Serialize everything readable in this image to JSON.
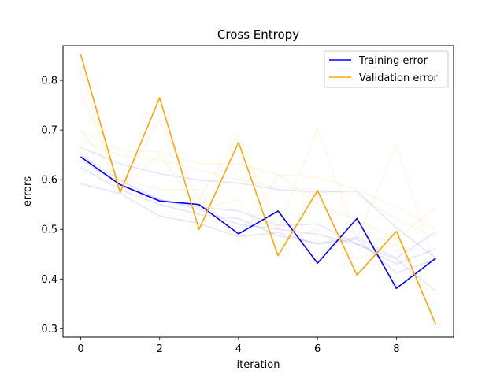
{
  "chart_data": {
    "type": "line",
    "title": "Cross Entropy",
    "xlabel": "iteration",
    "ylabel": "errors",
    "xlim": [
      -0.45,
      9.45
    ],
    "ylim": [
      0.283,
      0.87
    ],
    "xticks": [
      0,
      2,
      4,
      6,
      8
    ],
    "yticks": [
      0.3,
      0.4,
      0.5,
      0.6,
      0.7,
      0.8
    ],
    "grid": false,
    "legend_position": "top-right",
    "x": [
      0,
      1,
      2,
      3,
      4,
      5,
      6,
      7,
      8,
      9
    ],
    "series": [
      {
        "name": "Training error",
        "color": "#0000ff",
        "values": [
          0.646,
          0.59,
          0.557,
          0.55,
          0.491,
          0.537,
          0.432,
          0.522,
          0.381,
          0.442
        ]
      },
      {
        "name": "Validation error",
        "color": "#ffa500",
        "values": [
          0.852,
          0.574,
          0.765,
          0.5,
          0.675,
          0.447,
          0.578,
          0.408,
          0.496,
          0.308
        ]
      }
    ],
    "faded_series": [
      {
        "color": "#0000ff",
        "values": [
          0.665,
          0.632,
          0.612,
          0.599,
          0.593,
          0.58,
          0.575,
          0.577,
          0.503,
          0.442
        ]
      },
      {
        "color": "#0000ff",
        "values": [
          0.64,
          0.59,
          0.56,
          0.545,
          0.537,
          0.508,
          0.511,
          0.47,
          0.43,
          0.461
        ]
      },
      {
        "color": "#0000ff",
        "values": [
          0.625,
          0.58,
          0.55,
          0.53,
          0.522,
          0.487,
          0.472,
          0.484,
          0.442,
          0.495
        ]
      },
      {
        "color": "#0000ff",
        "values": [
          0.592,
          0.572,
          0.527,
          0.512,
          0.485,
          0.494,
          0.47,
          0.48,
          0.412,
          0.44
        ]
      },
      {
        "color": "#0000ff",
        "values": [
          0.65,
          0.598,
          0.56,
          0.54,
          0.51,
          0.5,
          0.49,
          0.47,
          0.44,
          0.375
        ]
      },
      {
        "color": "#ffa500",
        "values": [
          0.697,
          0.658,
          0.657,
          0.633,
          0.632,
          0.61,
          0.605,
          0.58,
          0.545,
          0.5
        ]
      },
      {
        "color": "#ffa500",
        "values": [
          0.68,
          0.65,
          0.64,
          0.62,
          0.6,
          0.585,
          0.58,
          0.57,
          0.52,
          0.485
        ]
      },
      {
        "color": "#ffa500",
        "values": [
          0.78,
          0.59,
          0.72,
          0.56,
          0.69,
          0.5,
          0.703,
          0.48,
          0.67,
          0.42
        ]
      },
      {
        "color": "#ffa500",
        "values": [
          0.7,
          0.6,
          0.58,
          0.58,
          0.47,
          0.61,
          0.55,
          0.52,
          0.48,
          0.545
        ]
      },
      {
        "color": "#ffa500",
        "values": [
          0.82,
          0.58,
          0.65,
          0.54,
          0.56,
          0.47,
          0.5,
          0.44,
          0.47,
          0.35
        ]
      }
    ]
  }
}
